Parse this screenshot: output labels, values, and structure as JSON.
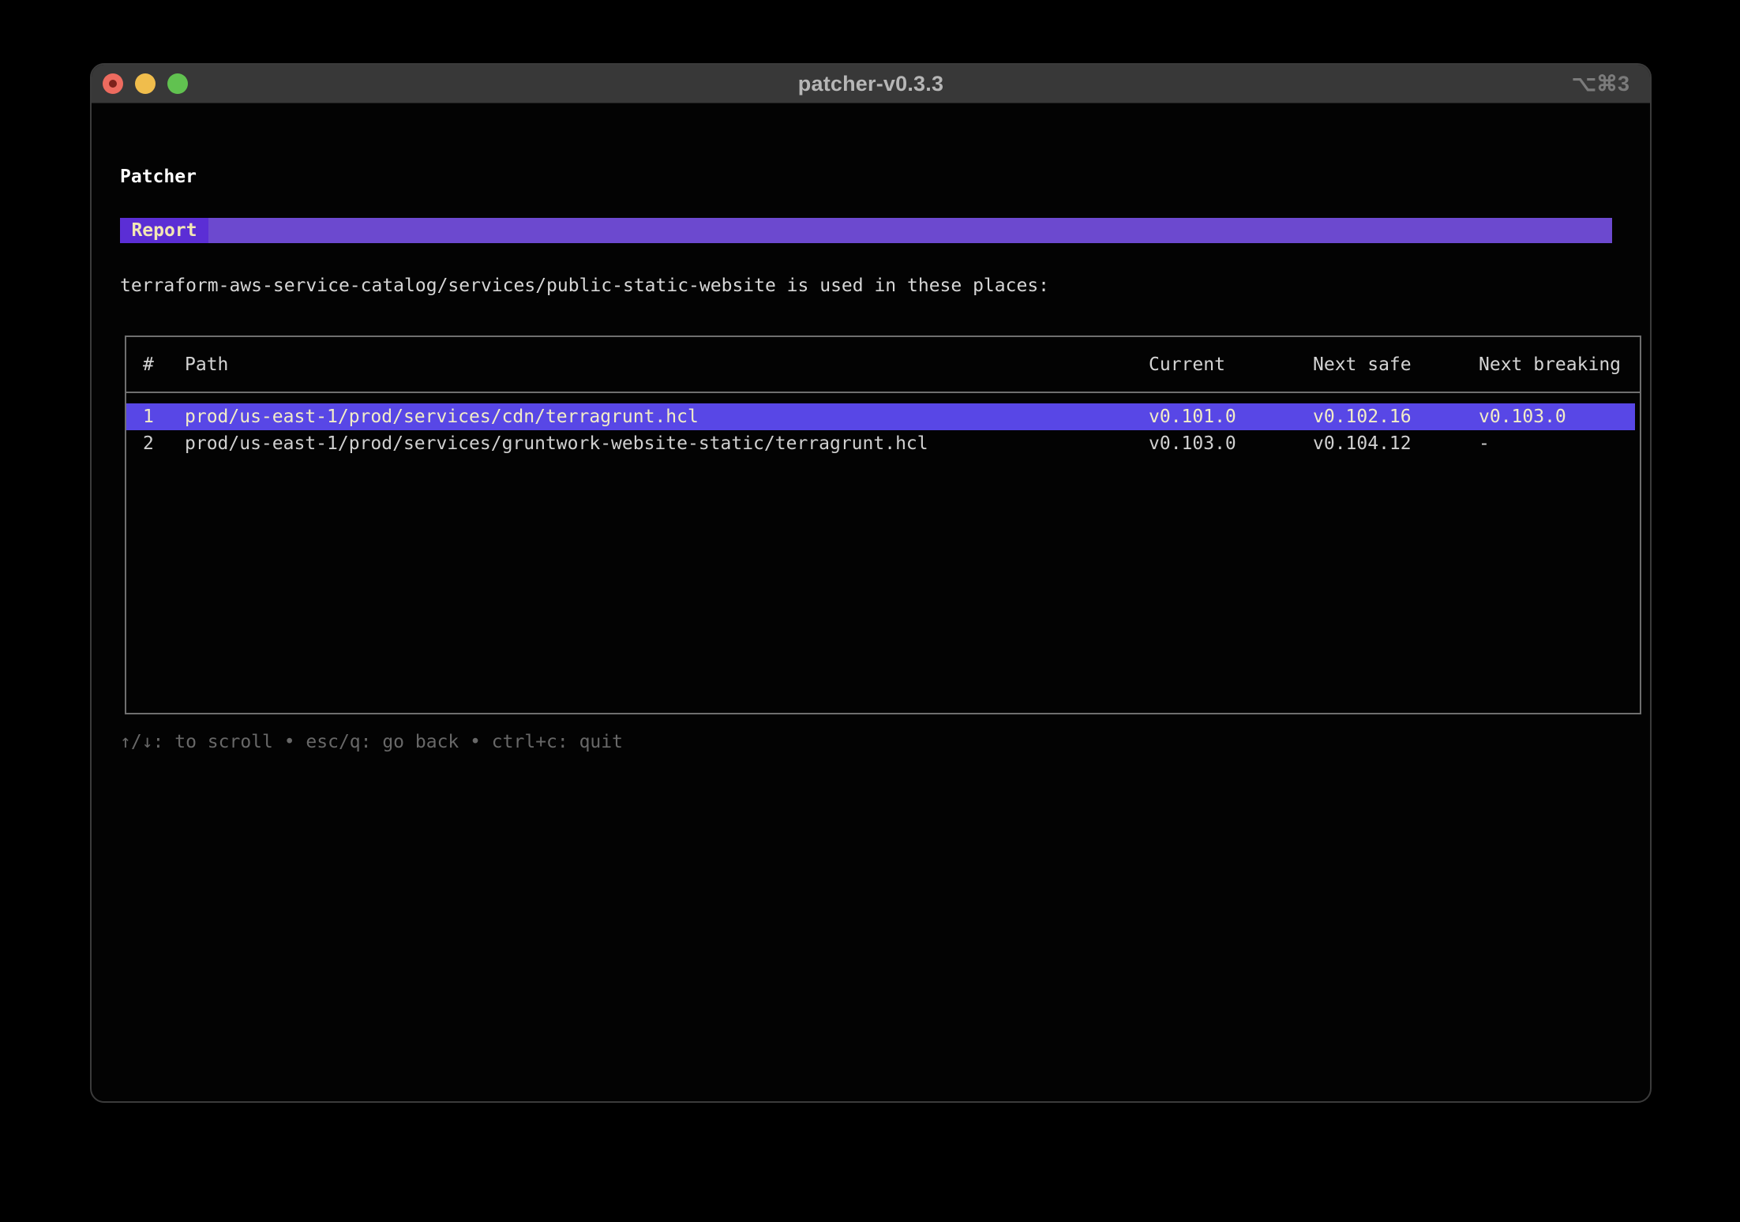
{
  "window": {
    "title": "patcher-v0.3.3",
    "shortcut": "⌥⌘3"
  },
  "app": {
    "heading": "Patcher",
    "tab_label": "Report",
    "intro": "terraform-aws-service-catalog/services/public-static-website is used in these places:",
    "table": {
      "columns": [
        "#",
        "Path",
        "Current",
        "Next safe",
        "Next breaking"
      ],
      "rows": [
        {
          "num": "1",
          "path": "prod/us-east-1/prod/services/cdn/terragrunt.hcl",
          "current": "v0.101.0",
          "next_safe": "v0.102.16",
          "next_breaking": "v0.103.0",
          "selected": true
        },
        {
          "num": "2",
          "path": "prod/us-east-1/prod/services/gruntwork-website-static/terragrunt.hcl",
          "current": "v0.103.0",
          "next_safe": "v0.104.12",
          "next_breaking": "-",
          "selected": false
        }
      ]
    },
    "footer_help": "↑/↓: to scroll • esc/q: go back • ctrl+c: quit"
  },
  "colors": {
    "selection_bg": "#5847e6",
    "selection_text": "#f3edc7",
    "tab_bg": "#5b2ed5",
    "bar_bg": "#6c49cf",
    "tab_text": "#f2e7b4",
    "table_border": "#6f6f6f",
    "normal_text": "#d0d0d0",
    "dim_text": "#686868",
    "titlebar_bg": "#383838",
    "traffic_red": "#ed6b5f",
    "traffic_yellow": "#f0bd4c",
    "traffic_green": "#61c250"
  }
}
